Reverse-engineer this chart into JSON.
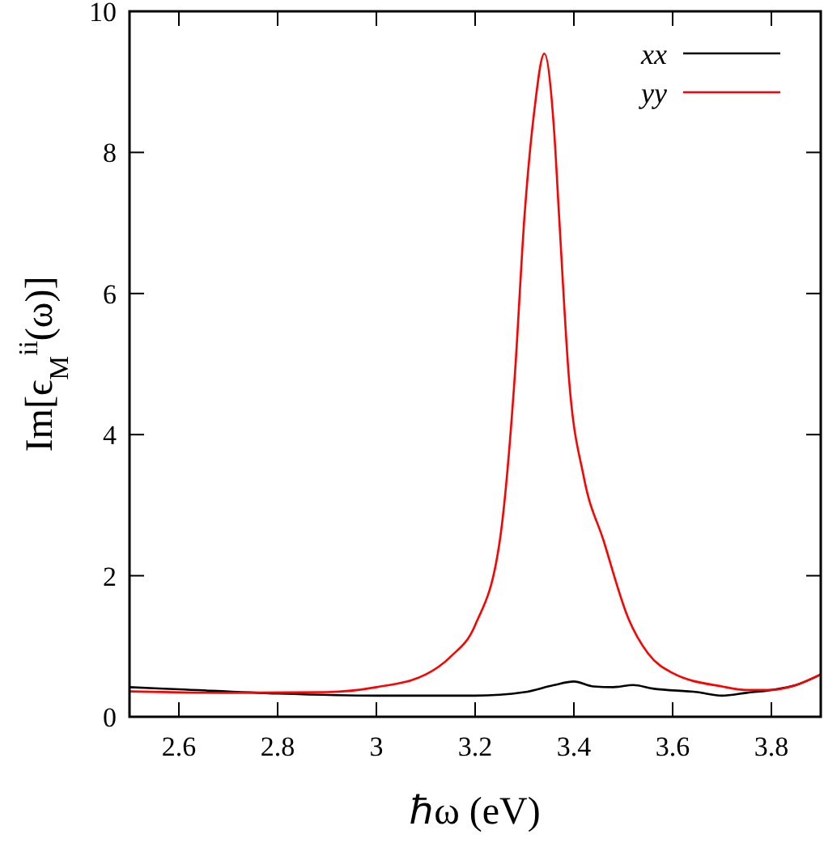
{
  "chart_data": {
    "type": "line",
    "xlabel": "ℏω (eV)",
    "ylabel": "Im[ϵ$_{M}$$^{ii}$(ω)]",
    "xlim": [
      2.5,
      3.9
    ],
    "ylim": [
      0,
      10
    ],
    "xticks": [
      2.6,
      2.8,
      3,
      3.2,
      3.4,
      3.6,
      3.8
    ],
    "yticks": [
      0,
      2,
      4,
      6,
      8,
      10
    ],
    "legend": "top right",
    "grid": false,
    "series": [
      {
        "name": "xx",
        "color": "#000000",
        "x": [
          2.5,
          2.6,
          2.8,
          3.0,
          3.2,
          3.3,
          3.36,
          3.4,
          3.44,
          3.48,
          3.52,
          3.56,
          3.65,
          3.7,
          3.75,
          3.8,
          3.85,
          3.9
        ],
        "values": [
          0.42,
          0.39,
          0.33,
          0.3,
          0.3,
          0.35,
          0.45,
          0.5,
          0.43,
          0.42,
          0.45,
          0.4,
          0.35,
          0.3,
          0.34,
          0.38,
          0.45,
          0.6
        ]
      },
      {
        "name": "yy",
        "color": "#ff0000",
        "x": [
          2.5,
          2.7,
          2.9,
          3.0,
          3.1,
          3.15,
          3.2,
          3.25,
          3.28,
          3.3,
          3.32,
          3.34,
          3.36,
          3.37,
          3.39,
          3.42,
          3.46,
          3.51,
          3.55,
          3.6,
          3.7,
          3.75,
          3.8,
          3.85,
          3.9
        ],
        "values": [
          0.36,
          0.34,
          0.35,
          0.42,
          0.6,
          0.85,
          1.3,
          2.5,
          4.8,
          7.1,
          8.6,
          9.4,
          8.3,
          7.1,
          4.8,
          3.4,
          2.5,
          1.4,
          0.9,
          0.62,
          0.43,
          0.38,
          0.38,
          0.45,
          0.6
        ]
      }
    ]
  }
}
